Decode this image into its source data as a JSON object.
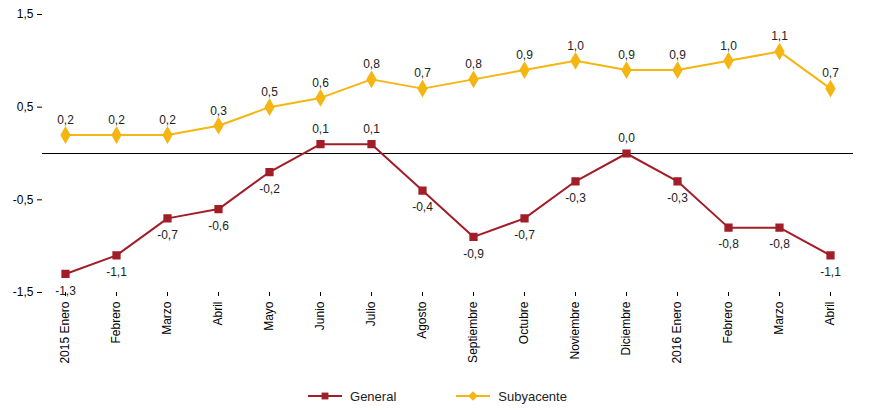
{
  "chart_data": {
    "type": "line",
    "categories": [
      "2015 Enero",
      "Febrero",
      "Marzo",
      "Abril",
      "Mayo",
      "Junio",
      "Julio",
      "Agosto",
      "Septiembre",
      "Octubre",
      "Noviembre",
      "Diciembre",
      "2016 Enero",
      "Febrero",
      "Marzo",
      "Abril"
    ],
    "series": [
      {
        "name": "General",
        "color": "#a11d28",
        "marker": "square",
        "values": [
          -1.3,
          -1.1,
          -0.7,
          -0.6,
          -0.2,
          0.1,
          0.1,
          -0.4,
          -0.9,
          -0.7,
          -0.3,
          0.0,
          -0.3,
          -0.8,
          -0.8,
          -1.1
        ],
        "value_labels": [
          "-1,3",
          "-1,1",
          "-0,7",
          "-0,6",
          "-0,2",
          "0,1",
          "0,1",
          "-0,4",
          "-0,9",
          "-0,7",
          "-0,3",
          "0,0",
          "-0,3",
          "-0,8",
          "-0,8",
          "-1,1"
        ]
      },
      {
        "name": "Subyacente",
        "color": "#f5b512",
        "marker": "diamond",
        "values": [
          0.2,
          0.2,
          0.2,
          0.3,
          0.5,
          0.6,
          0.8,
          0.7,
          0.8,
          0.9,
          1.0,
          0.9,
          0.9,
          1.0,
          1.1,
          0.7
        ],
        "value_labels": [
          "0,2",
          "0,2",
          "0,2",
          "0,3",
          "0,5",
          "0,6",
          "0,8",
          "0,7",
          "0,8",
          "0,9",
          "1,0",
          "0,9",
          "0,9",
          "1,0",
          "1,1",
          "0,7"
        ]
      }
    ],
    "ylim": [
      -1.5,
      1.5
    ],
    "yticks": [
      {
        "value": -1.5,
        "label": "-1,5"
      },
      {
        "value": -0.5,
        "label": "-0,5"
      },
      {
        "value": 0.5,
        "label": "0,5"
      },
      {
        "value": 1.5,
        "label": "1,5"
      }
    ],
    "data_labels": true,
    "grid": false,
    "legend": "bottom"
  }
}
